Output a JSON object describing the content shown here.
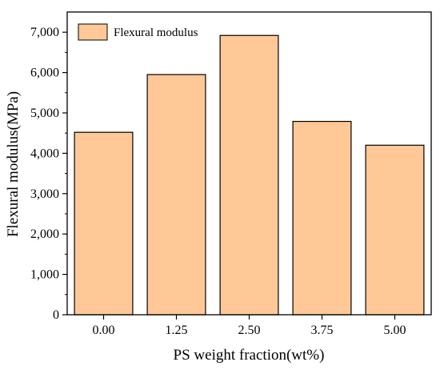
{
  "chart_data": {
    "type": "bar",
    "categories": [
      "0.00",
      "1.25",
      "2.50",
      "3.75",
      "5.00"
    ],
    "series": [
      {
        "name": "Flexural modulus",
        "values": [
          4520,
          5950,
          6920,
          4790,
          4200
        ]
      }
    ],
    "xlabel": "PS weight fraction(wt%)",
    "ylabel": "Flexural modulus(MPa)",
    "ylim": [
      0,
      7500
    ],
    "yticks": [
      0,
      1000,
      2000,
      3000,
      4000,
      5000,
      6000,
      7000
    ],
    "ytick_labels": [
      "0",
      "1,000",
      "2,000",
      "3,000",
      "4,000",
      "5,000",
      "6,000",
      "7,000"
    ],
    "legend": {
      "position": "top-left",
      "label": "Flexural modulus"
    },
    "grid": false,
    "colors": {
      "bar_fill": "#FFC896",
      "bar_stroke": "#000000"
    }
  }
}
